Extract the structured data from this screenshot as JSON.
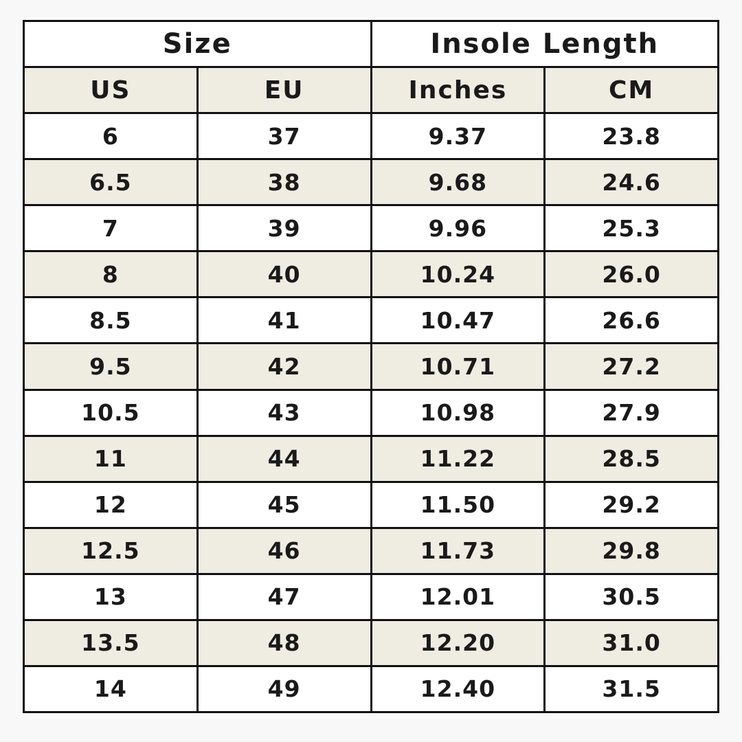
{
  "table": {
    "header_groups": [
      "Size",
      "Insole Length"
    ],
    "columns": [
      "US",
      "EU",
      "Inches",
      "CM"
    ],
    "rows": [
      [
        "6",
        "37",
        "9.37",
        "23.8"
      ],
      [
        "6.5",
        "38",
        "9.68",
        "24.6"
      ],
      [
        "7",
        "39",
        "9.96",
        "25.3"
      ],
      [
        "8",
        "40",
        "10.24",
        "26.0"
      ],
      [
        "8.5",
        "41",
        "10.47",
        "26.6"
      ],
      [
        "9.5",
        "42",
        "10.71",
        "27.2"
      ],
      [
        "10.5",
        "43",
        "10.98",
        "27.9"
      ],
      [
        "11",
        "44",
        "11.22",
        "28.5"
      ],
      [
        "12",
        "45",
        "11.50",
        "29.2"
      ],
      [
        "12.5",
        "46",
        "11.73",
        "29.8"
      ],
      [
        "13",
        "47",
        "12.01",
        "30.5"
      ],
      [
        "13.5",
        "48",
        "12.20",
        "31.0"
      ],
      [
        "14",
        "49",
        "12.40",
        "31.5"
      ]
    ]
  }
}
